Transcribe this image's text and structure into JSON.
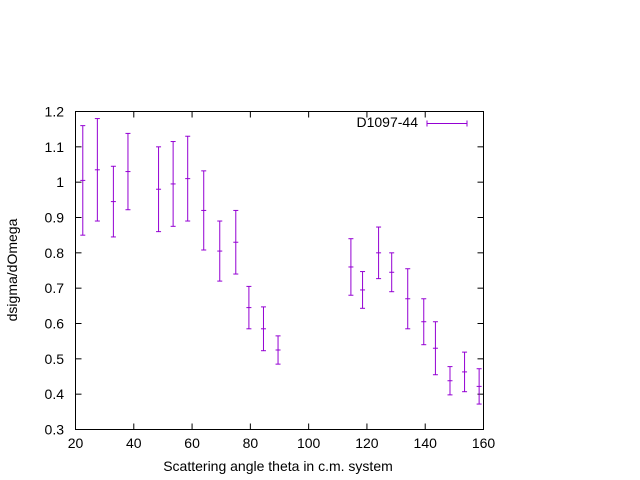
{
  "chart_data": {
    "type": "scatter",
    "title": "",
    "xlabel": "Scattering angle theta in c.m. system",
    "ylabel": "dsigma/dOmega",
    "xlim": [
      20,
      160
    ],
    "ylim": [
      0.3,
      1.2
    ],
    "xticks": [
      "20",
      "40",
      "60",
      "80",
      "100",
      "120",
      "140",
      "160"
    ],
    "yticks": [
      "0.3",
      "0.4",
      "0.5",
      "0.6",
      "0.7",
      "0.8",
      "0.9",
      "1",
      "1.1",
      "1.2"
    ],
    "grid": false,
    "legend_position": "top-right",
    "series": [
      {
        "name": "D1097-44",
        "color": "#9400d3",
        "marker": "errorbar",
        "points": [
          {
            "x": 22.5,
            "y": 1.005,
            "err": 0.155
          },
          {
            "x": 27.5,
            "y": 1.035,
            "err": 0.145
          },
          {
            "x": 33.0,
            "y": 0.945,
            "err": 0.1
          },
          {
            "x": 38.0,
            "y": 1.03,
            "err": 0.108
          },
          {
            "x": 48.5,
            "y": 0.98,
            "err": 0.12
          },
          {
            "x": 53.5,
            "y": 0.995,
            "err": 0.12
          },
          {
            "x": 58.5,
            "y": 1.01,
            "err": 0.12
          },
          {
            "x": 64.0,
            "y": 0.92,
            "err": 0.112
          },
          {
            "x": 69.5,
            "y": 0.805,
            "err": 0.085
          },
          {
            "x": 75.0,
            "y": 0.83,
            "err": 0.09
          },
          {
            "x": 79.5,
            "y": 0.645,
            "err": 0.06
          },
          {
            "x": 84.5,
            "y": 0.585,
            "err": 0.062
          },
          {
            "x": 89.5,
            "y": 0.525,
            "err": 0.04
          },
          {
            "x": 114.5,
            "y": 0.76,
            "err": 0.08
          },
          {
            "x": 118.5,
            "y": 0.695,
            "err": 0.052
          },
          {
            "x": 124.0,
            "y": 0.8,
            "err": 0.073
          },
          {
            "x": 128.5,
            "y": 0.745,
            "err": 0.055
          },
          {
            "x": 134.0,
            "y": 0.67,
            "err": 0.085
          },
          {
            "x": 139.5,
            "y": 0.605,
            "err": 0.065
          },
          {
            "x": 143.5,
            "y": 0.53,
            "err": 0.075
          },
          {
            "x": 148.5,
            "y": 0.438,
            "err": 0.04
          },
          {
            "x": 153.5,
            "y": 0.463,
            "err": 0.056
          },
          {
            "x": 158.5,
            "y": 0.422,
            "err": 0.05
          }
        ]
      }
    ]
  }
}
